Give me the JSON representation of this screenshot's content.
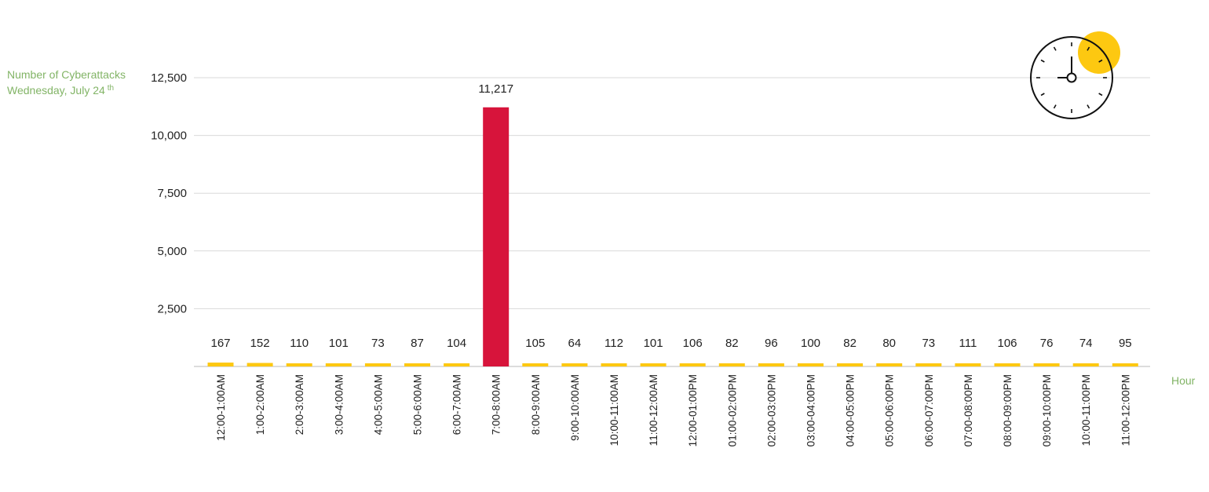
{
  "chart_data": {
    "type": "bar",
    "ylabel_line1": "Number of Cyberattacks",
    "ylabel_line2": "Wednesday, July 24",
    "ylabel_superscript": "th",
    "xlabel": "Hour",
    "ylim": [
      0,
      12500
    ],
    "yticks": [
      2500,
      5000,
      7500,
      10000,
      12500
    ],
    "ytick_labels": [
      "2,500",
      "5,000",
      "7,500",
      "10,000",
      "12,500"
    ],
    "grid": true,
    "categories": [
      "12:00-1:00AM",
      "1:00-2:00AM",
      "2:00-3:00AM",
      "3:00-4:00AM",
      "4:00-5:00AM",
      "5:00-6:00AM",
      "6:00-7:00AM",
      "7:00-8:00AM",
      "8:00-9:00AM",
      "9:00-10:00AM",
      "10:00-11:00AM",
      "11:00-12:00AM",
      "12:00-01:00PM",
      "01:00-02:00PM",
      "02:00-03:00PM",
      "03:00-04:00PM",
      "04:00-05:00PM",
      "05:00-06:00PM",
      "06:00-07:00PM",
      "07:00-08:00PM",
      "08:00-09:00PM",
      "09:00-10:00PM",
      "10:00-11:00PM",
      "11:00-12:00PM"
    ],
    "values": [
      167,
      152,
      110,
      101,
      73,
      87,
      104,
      11217,
      105,
      64,
      112,
      101,
      106,
      82,
      96,
      100,
      82,
      80,
      73,
      111,
      106,
      76,
      74,
      95
    ],
    "value_labels": [
      "167",
      "152",
      "110",
      "101",
      "73",
      "87",
      "104",
      "11,217",
      "105",
      "64",
      "112",
      "101",
      "106",
      "82",
      "96",
      "100",
      "82",
      "80",
      "73",
      "111",
      "106",
      "76",
      "74",
      "95"
    ],
    "highlight_index": 7,
    "colors": {
      "bar": "#fdc811",
      "highlight": "#d7143b",
      "grid": "#d9d9d9",
      "label_text": "#82b466"
    }
  },
  "icon": {
    "name": "clock-icon",
    "accent": "#fdc811"
  }
}
